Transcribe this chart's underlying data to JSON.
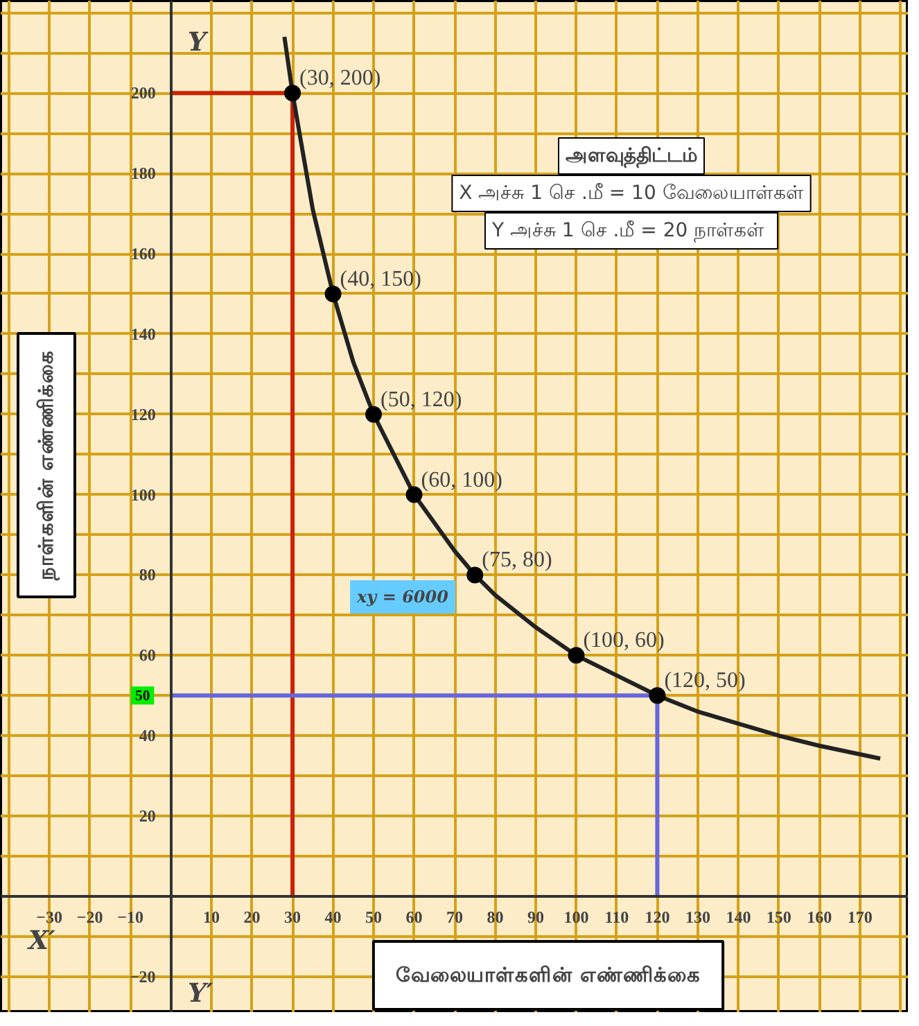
{
  "chart_data": {
    "type": "scatter",
    "xlabel": "வேலையாள்களின் எண்ணிக்கை",
    "ylabel": "நாள்களின் எண்ணிக்கை",
    "annotations": [
      "அளவுத்திட்டம்",
      "X அச்சு 1 செ .மீ = 10 வேலையாள்கள்",
      "Y அச்சு 1 செ .மீ =  20 நாள்கள்",
      "xy = 6000",
      {
        "text": "50",
        "x": -7,
        "y": 50
      },
      "X′",
      "Y′",
      "Y"
    ],
    "xlim": [
      -42,
      182
    ],
    "ylim": [
      -29,
      223
    ],
    "xticks": [
      -30,
      -20,
      -10,
      10,
      20,
      30,
      40,
      50,
      60,
      70,
      80,
      90,
      100,
      110,
      120,
      130,
      140,
      150,
      160,
      170
    ],
    "yticks": [
      -20,
      20,
      40,
      60,
      80,
      100,
      120,
      140,
      160,
      180,
      200
    ],
    "grid": true,
    "series": [
      {
        "type": "line",
        "color": "#cc2200",
        "x": [
          0,
          30,
          30
        ],
        "values": [
          200,
          200,
          0
        ]
      },
      {
        "type": "line",
        "color": "#6666dd",
        "x": [
          0,
          120,
          120
        ],
        "values": [
          50,
          50,
          0
        ]
      },
      {
        "type": "line",
        "color": "#222222",
        "x": [
          28,
          30,
          35,
          40,
          45,
          50,
          60,
          70,
          75,
          80,
          90,
          100,
          110,
          120,
          130,
          140,
          150,
          160,
          175
        ],
        "values": [
          214,
          200,
          171,
          150,
          133,
          120,
          100,
          86,
          80,
          75,
          67,
          60,
          55,
          50,
          46,
          43,
          40,
          37.5,
          34.3
        ]
      },
      {
        "color": "#000000",
        "marker": "circle",
        "x": [
          30,
          40,
          50,
          60,
          75,
          100,
          120
        ],
        "values": [
          200,
          150,
          120,
          100,
          80,
          60,
          50
        ],
        "value_labels": [
          "(30, 200)",
          "(40, 150)",
          "(50, 120)",
          "(60, 100)",
          "(75, 80)",
          "(100, 60)",
          "(120, 50)"
        ]
      }
    ]
  }
}
